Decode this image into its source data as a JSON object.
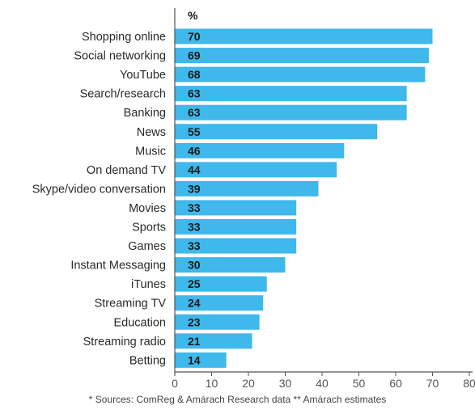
{
  "chart_data": {
    "type": "bar",
    "orientation": "horizontal",
    "unit_label": "%",
    "categories": [
      "Shopping online",
      "Social networking",
      "YouTube",
      "Search/research",
      "Banking",
      "News",
      "Music",
      "On demand TV",
      "Skype/video conversation",
      "Movies",
      "Sports",
      "Games",
      "Instant Messaging",
      "iTunes",
      "Streaming TV",
      "Education",
      "Streaming radio",
      "Betting"
    ],
    "values": [
      70,
      69,
      68,
      63,
      63,
      55,
      46,
      44,
      39,
      33,
      33,
      33,
      30,
      25,
      24,
      23,
      21,
      14
    ],
    "xlim": [
      0,
      80
    ],
    "xticks": [
      0,
      10,
      20,
      30,
      40,
      50,
      60,
      70,
      80
    ],
    "bar_color": "#3fb8ec",
    "grid": false
  },
  "footnote": "* Sources: ComReg & Amárach Research data ** Amárach estimates"
}
